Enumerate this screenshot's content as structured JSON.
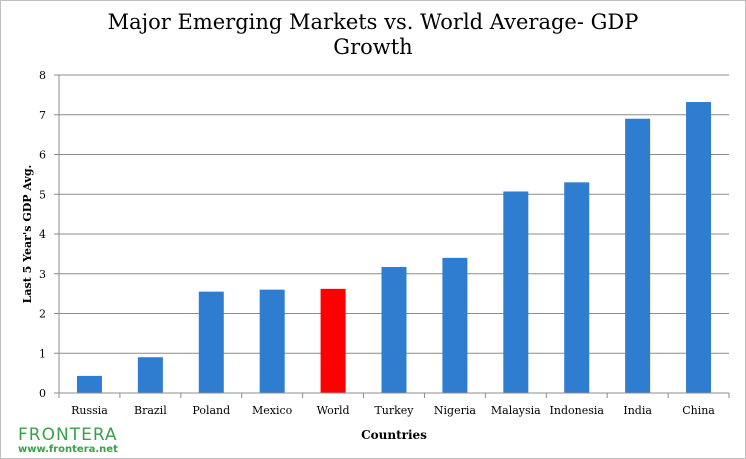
{
  "chart_data": {
    "type": "bar",
    "title": "Major Emerging Markets vs. World Average- GDP Growth",
    "title_lines": [
      "Major Emerging Markets vs.  World Average- GDP",
      "Growth"
    ],
    "xlabel": "Countries",
    "ylabel": "Last 5 Year's GDP Avg.",
    "categories": [
      "Russia",
      "Brazil",
      "Poland",
      "Mexico",
      "World",
      "Turkey",
      "Nigeria",
      "Malaysia",
      "Indonesia",
      "India",
      "China"
    ],
    "values": [
      0.43,
      0.9,
      2.55,
      2.6,
      2.62,
      3.17,
      3.4,
      5.07,
      5.3,
      6.9,
      7.32
    ],
    "ylim": [
      0,
      8
    ],
    "yticks": [
      0,
      1,
      2,
      3,
      4,
      5,
      6,
      7,
      8
    ],
    "grid": true,
    "bar_color": "#2e7dd1",
    "highlight_color": "#ff0000",
    "highlight_category": "World"
  },
  "logo": {
    "name": "FRONTERA",
    "url": "www.frontera.net",
    "color": "#3aa04a"
  }
}
